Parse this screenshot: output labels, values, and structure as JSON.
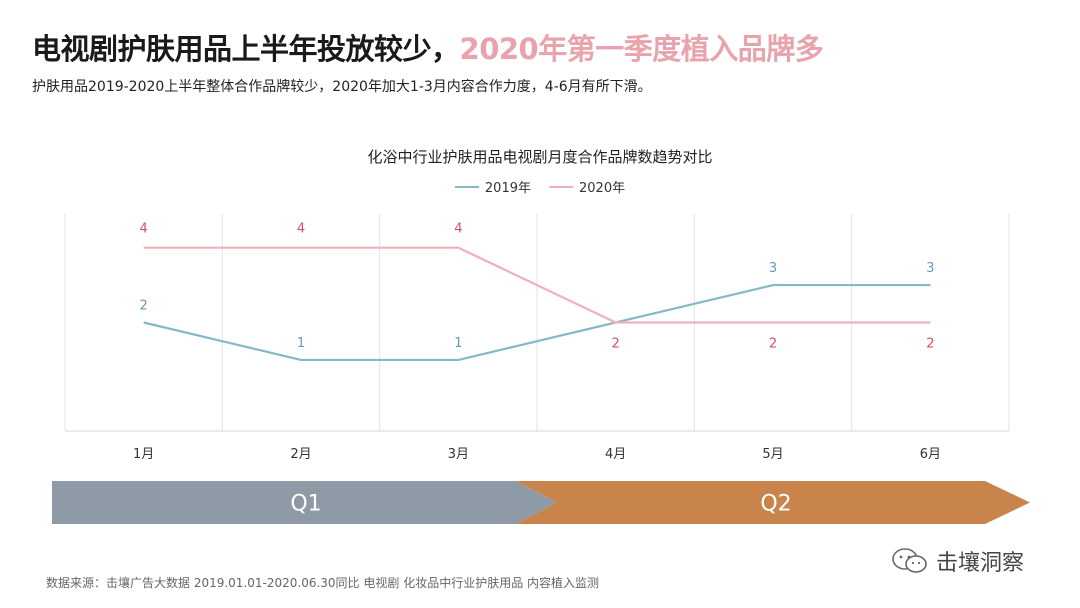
{
  "header": {
    "title_main": "电视剧护肤用品上半年投放较少，",
    "title_highlight": "2020年第一季度植入品牌多",
    "subtitle": "护肤用品2019-2020上半年整体合作品牌较少，2020年加大1-3月内容合作力度，4-6月有所下滑。"
  },
  "colors": {
    "series_2019": "#86b8c8",
    "series_2020": "#f0b0b8",
    "label_2019": "#5f9db3",
    "label_2020": "#d94f62",
    "q1_band": "#8e9aa6",
    "q2_band": "#c8844a"
  },
  "chart_data": {
    "type": "line",
    "title": "化浴中行业护肤用品电视剧月度合作品牌数趋势对比",
    "categories": [
      "1月",
      "2月",
      "3月",
      "4月",
      "5月",
      "6月"
    ],
    "series": [
      {
        "name": "2019年",
        "values": [
          2,
          1,
          1,
          2,
          3,
          3
        ]
      },
      {
        "name": "2020年",
        "values": [
          4,
          4,
          4,
          2,
          2,
          2
        ]
      }
    ],
    "data_labels": {
      "2019年": [
        "2",
        "1",
        "1",
        "",
        "3",
        "3"
      ],
      "2020年": [
        "4",
        "4",
        "4",
        "2",
        "2",
        "2"
      ]
    },
    "ylim": [
      -0.9,
      4.9
    ],
    "legend_position": "top-center",
    "quarters": [
      {
        "label": "Q1",
        "months": [
          "1月",
          "2月",
          "3月"
        ]
      },
      {
        "label": "Q2",
        "months": [
          "4月",
          "5月",
          "6月"
        ]
      }
    ]
  },
  "footer": {
    "source": "数据来源：击壤广告大数据 2019.01.01-2020.06.30同比 电视剧 化妆品中行业护肤用品 内容植入监测",
    "brand": "击壤洞察",
    "brand_icon": "wechat-icon"
  }
}
